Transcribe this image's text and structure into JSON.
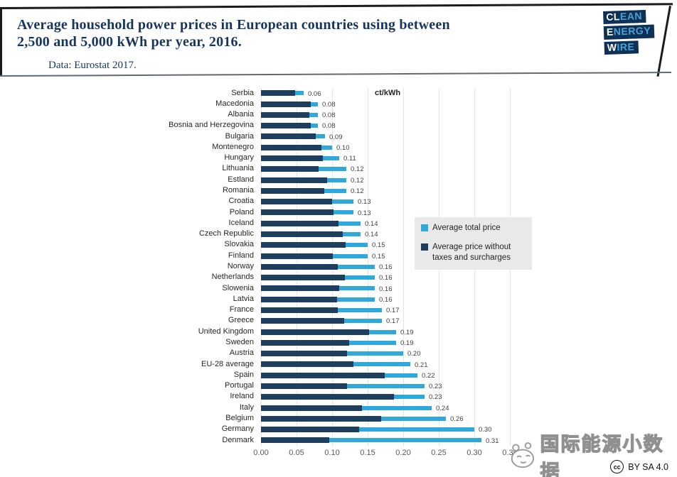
{
  "header": {
    "title_lines": [
      "Average household power prices in European countries using between",
      "2,500 and 5,000 kWh per year, 2016."
    ],
    "subtitle": "Data: Eurostat 2017.",
    "logo": {
      "rows": [
        {
          "lead": "CL",
          "rest": "EAN"
        },
        {
          "lead": "E",
          "rest": "NERGY"
        },
        {
          "lead": "W",
          "rest": "IRE"
        }
      ],
      "bg": "#0f3156",
      "lead_color": "#ffffff",
      "rest_color": "#4ba0d6"
    }
  },
  "chart_data": {
    "type": "bar",
    "orientation": "horizontal",
    "title": "Average household power prices in European countries using between 2,500 and 5,000 kWh per year, 2016.",
    "unit_label": "ct/kWh",
    "xlim": [
      0,
      0.35
    ],
    "xticks": [
      "0.00",
      "0.05",
      "0.10",
      "0.15",
      "0.20",
      "0.25",
      "0.30",
      "0.35"
    ],
    "grid": true,
    "legend_position": "center-right",
    "categories": [
      "Serbia",
      "Macedonia",
      "Albania",
      "Bosnia and Herzegovina",
      "Bulgaria",
      "Montenegro",
      "Hungary",
      "Lithuania",
      "Estland",
      "Romania",
      "Croatia",
      "Poland",
      "Iceland",
      "Czech Republic",
      "Slovakia",
      "Finland",
      "Norway",
      "Netherlands",
      "Slowenia",
      "Latvia",
      "France",
      "Greece",
      "United Kingdom",
      "Sweden",
      "Austria",
      "EU-28 average",
      "Spain",
      "Portugal",
      "Ireland",
      "Italy",
      "Belgium",
      "Germany",
      "Denmark"
    ],
    "series": [
      {
        "name": "Average total price",
        "color": "#2fa8dc",
        "data_labels": true,
        "values": [
          0.06,
          0.08,
          0.08,
          0.08,
          0.09,
          0.1,
          0.11,
          0.12,
          0.12,
          0.12,
          0.13,
          0.13,
          0.14,
          0.14,
          0.15,
          0.15,
          0.16,
          0.16,
          0.16,
          0.16,
          0.17,
          0.17,
          0.19,
          0.19,
          0.2,
          0.21,
          0.22,
          0.23,
          0.23,
          0.24,
          0.26,
          0.3,
          0.31
        ]
      },
      {
        "name": "Average price without taxes and surcharges",
        "color": "#1e3e5e",
        "data_labels": false,
        "values": [
          0.048,
          0.07,
          0.068,
          0.07,
          0.077,
          0.085,
          0.087,
          0.081,
          0.093,
          0.089,
          0.1,
          0.102,
          0.109,
          0.115,
          0.119,
          0.101,
          0.108,
          0.118,
          0.11,
          0.107,
          0.108,
          0.117,
          0.152,
          0.124,
          0.121,
          0.13,
          0.174,
          0.121,
          0.187,
          0.142,
          0.169,
          0.138,
          0.096
        ]
      }
    ]
  },
  "legend": {
    "items": [
      {
        "label": "Average total price",
        "color": "#2fa8dc"
      },
      {
        "label": "Average price without taxes and surcharges",
        "color": "#1e3e5e"
      }
    ]
  },
  "footer": {
    "watermark": "国际能源小数据",
    "cc_label": "cc",
    "license": "BY SA 4.0"
  }
}
